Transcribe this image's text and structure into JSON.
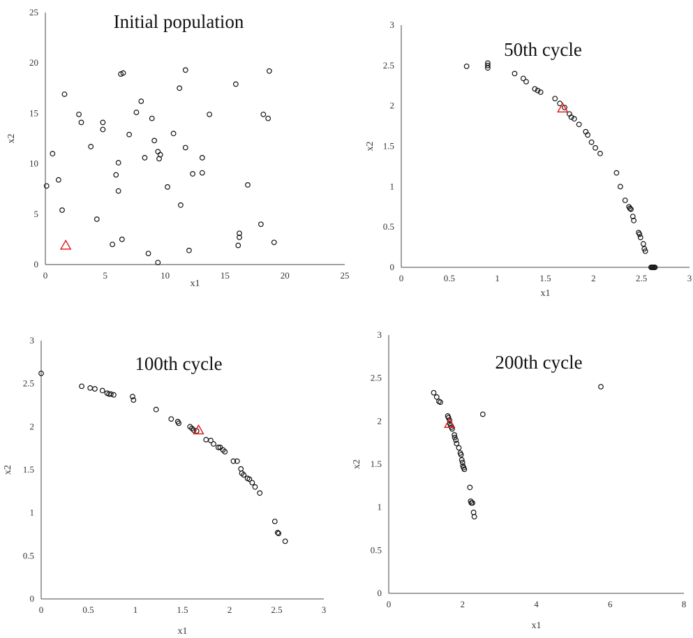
{
  "chart_data": [
    {
      "type": "scatter",
      "title": "Initial population",
      "xlabel": "x1",
      "ylabel": "x2",
      "xlim": [
        0,
        25
      ],
      "ylim": [
        0,
        25
      ],
      "xticks": [
        "0",
        "5",
        "10",
        "15",
        "20",
        "25"
      ],
      "yticks": [
        "0",
        "5",
        "10",
        "15",
        "20",
        "25"
      ],
      "grid": false,
      "points": [
        [
          0.1,
          7.8
        ],
        [
          0.6,
          11
        ],
        [
          1.1,
          8.4
        ],
        [
          1.4,
          5.4
        ],
        [
          1.6,
          16.9
        ],
        [
          2.8,
          14.9
        ],
        [
          3.0,
          14.1
        ],
        [
          3.8,
          11.7
        ],
        [
          4.3,
          4.5
        ],
        [
          4.8,
          14.1
        ],
        [
          4.8,
          13.4
        ],
        [
          5.6,
          2.0
        ],
        [
          5.9,
          8.9
        ],
        [
          6.1,
          10.1
        ],
        [
          6.1,
          7.3
        ],
        [
          6.3,
          18.9
        ],
        [
          6.5,
          19.0
        ],
        [
          6.4,
          2.5
        ],
        [
          7.0,
          12.9
        ],
        [
          7.6,
          15.1
        ],
        [
          8.0,
          16.2
        ],
        [
          8.3,
          10.6
        ],
        [
          8.6,
          1.1
        ],
        [
          8.9,
          14.5
        ],
        [
          9.1,
          12.3
        ],
        [
          9.4,
          11.2
        ],
        [
          9.6,
          10.9
        ],
        [
          9.5,
          10.5
        ],
        [
          9.4,
          0.2
        ],
        [
          10.2,
          7.7
        ],
        [
          10.7,
          13.0
        ],
        [
          11.2,
          17.5
        ],
        [
          11.3,
          5.9
        ],
        [
          11.7,
          19.3
        ],
        [
          11.7,
          11.6
        ],
        [
          12.0,
          1.4
        ],
        [
          12.3,
          9.0
        ],
        [
          13.1,
          10.6
        ],
        [
          13.1,
          9.1
        ],
        [
          13.7,
          14.9
        ],
        [
          15.9,
          17.9
        ],
        [
          16.2,
          3.1
        ],
        [
          16.2,
          2.7
        ],
        [
          16.1,
          1.9
        ],
        [
          16.9,
          7.9
        ],
        [
          18.0,
          4.0
        ],
        [
          18.2,
          14.9
        ],
        [
          18.6,
          14.5
        ],
        [
          18.7,
          19.2
        ],
        [
          19.1,
          2.2
        ]
      ],
      "marker": [
        1.7,
        1.9
      ]
    },
    {
      "type": "scatter",
      "title": "50th cycle",
      "xlabel": "x1",
      "ylabel": "x2",
      "xlim": [
        0,
        3
      ],
      "ylim": [
        0,
        3
      ],
      "xticks": [
        "0",
        "0.5",
        "1",
        "1.5",
        "2",
        "2.5",
        "3"
      ],
      "yticks": [
        "0",
        "0.5",
        "1",
        "1.5",
        "2",
        "2.5",
        "3"
      ],
      "grid": false,
      "points": [
        [
          0.68,
          2.49
        ],
        [
          0.9,
          2.53
        ],
        [
          0.9,
          2.5
        ],
        [
          0.9,
          2.47
        ],
        [
          1.18,
          2.4
        ],
        [
          1.27,
          2.34
        ],
        [
          1.3,
          2.3
        ],
        [
          1.39,
          2.21
        ],
        [
          1.42,
          2.19
        ],
        [
          1.45,
          2.17
        ],
        [
          1.6,
          2.09
        ],
        [
          1.65,
          2.03
        ],
        [
          1.7,
          1.98
        ],
        [
          1.75,
          1.9
        ],
        [
          1.77,
          1.86
        ],
        [
          1.8,
          1.84
        ],
        [
          1.85,
          1.77
        ],
        [
          1.92,
          1.68
        ],
        [
          1.94,
          1.64
        ],
        [
          1.98,
          1.55
        ],
        [
          2.02,
          1.48
        ],
        [
          2.07,
          1.41
        ],
        [
          2.24,
          1.17
        ],
        [
          2.28,
          1.0
        ],
        [
          2.33,
          0.83
        ],
        [
          2.37,
          0.75
        ],
        [
          2.38,
          0.73
        ],
        [
          2.39,
          0.72
        ],
        [
          2.41,
          0.63
        ],
        [
          2.42,
          0.58
        ],
        [
          2.47,
          0.43
        ],
        [
          2.48,
          0.41
        ],
        [
          2.49,
          0.37
        ],
        [
          2.52,
          0.29
        ],
        [
          2.53,
          0.23
        ],
        [
          2.54,
          0.2
        ],
        [
          2.6,
          0.0
        ],
        [
          2.61,
          0.0
        ],
        [
          2.62,
          0.0
        ],
        [
          2.63,
          0.0
        ],
        [
          2.64,
          0.0
        ]
      ],
      "marker": [
        1.68,
        1.97
      ]
    },
    {
      "type": "scatter",
      "title": "100th cycle",
      "xlabel": "x1",
      "ylabel": "x2",
      "xlim": [
        0,
        3
      ],
      "ylim": [
        0,
        3
      ],
      "xticks": [
        "0",
        "0.5",
        "1",
        "1.5",
        "2",
        "2.5",
        "3"
      ],
      "yticks": [
        "0",
        "0.5",
        "1",
        "1.5",
        "2",
        "2.5",
        "3"
      ],
      "grid": false,
      "points": [
        [
          0.0,
          2.62
        ],
        [
          0.43,
          2.47
        ],
        [
          0.52,
          2.45
        ],
        [
          0.57,
          2.44
        ],
        [
          0.65,
          2.42
        ],
        [
          0.7,
          2.39
        ],
        [
          0.72,
          2.38
        ],
        [
          0.74,
          2.38
        ],
        [
          0.77,
          2.37
        ],
        [
          0.97,
          2.35
        ],
        [
          0.98,
          2.31
        ],
        [
          1.22,
          2.2
        ],
        [
          1.38,
          2.09
        ],
        [
          1.45,
          2.06
        ],
        [
          1.46,
          2.04
        ],
        [
          1.58,
          2.0
        ],
        [
          1.6,
          1.98
        ],
        [
          1.62,
          1.96
        ],
        [
          1.65,
          1.95
        ],
        [
          1.75,
          1.85
        ],
        [
          1.8,
          1.84
        ],
        [
          1.83,
          1.8
        ],
        [
          1.88,
          1.76
        ],
        [
          1.9,
          1.76
        ],
        [
          1.93,
          1.73
        ],
        [
          1.95,
          1.71
        ],
        [
          2.04,
          1.6
        ],
        [
          2.08,
          1.6
        ],
        [
          2.12,
          1.51
        ],
        [
          2.13,
          1.46
        ],
        [
          2.15,
          1.44
        ],
        [
          2.19,
          1.4
        ],
        [
          2.21,
          1.39
        ],
        [
          2.24,
          1.35
        ],
        [
          2.27,
          1.3
        ],
        [
          2.32,
          1.23
        ],
        [
          2.48,
          0.9
        ],
        [
          2.51,
          0.77
        ],
        [
          2.52,
          0.76
        ],
        [
          2.59,
          0.67
        ]
      ],
      "marker": [
        1.67,
        1.96
      ]
    },
    {
      "type": "scatter",
      "title": "200th cycle",
      "xlabel": "x1",
      "ylabel": "x2",
      "xlim": [
        0,
        8
      ],
      "ylim": [
        0,
        3
      ],
      "xticks": [
        "0",
        "2",
        "4",
        "6",
        "8"
      ],
      "yticks": [
        "0",
        "0.5",
        "1",
        "1.5",
        "2",
        "2.5",
        "3"
      ],
      "grid": false,
      "points": [
        [
          1.22,
          2.33
        ],
        [
          1.3,
          2.28
        ],
        [
          1.36,
          2.23
        ],
        [
          1.4,
          2.22
        ],
        [
          1.6,
          2.06
        ],
        [
          1.62,
          2.04
        ],
        [
          1.65,
          2.01
        ],
        [
          1.66,
          1.97
        ],
        [
          1.68,
          1.95
        ],
        [
          1.7,
          1.93
        ],
        [
          1.72,
          1.91
        ],
        [
          1.78,
          1.84
        ],
        [
          1.79,
          1.81
        ],
        [
          1.82,
          1.78
        ],
        [
          1.84,
          1.74
        ],
        [
          1.9,
          1.69
        ],
        [
          1.94,
          1.63
        ],
        [
          1.96,
          1.61
        ],
        [
          1.98,
          1.55
        ],
        [
          2.0,
          1.52
        ],
        [
          2.01,
          1.48
        ],
        [
          2.03,
          1.46
        ],
        [
          2.05,
          1.44
        ],
        [
          2.2,
          1.23
        ],
        [
          2.22,
          1.07
        ],
        [
          2.24,
          1.05
        ],
        [
          2.27,
          1.05
        ],
        [
          2.3,
          0.94
        ],
        [
          2.32,
          0.89
        ],
        [
          2.55,
          2.08
        ],
        [
          5.75,
          2.4
        ]
      ],
      "marker": [
        1.65,
        1.97
      ]
    }
  ]
}
